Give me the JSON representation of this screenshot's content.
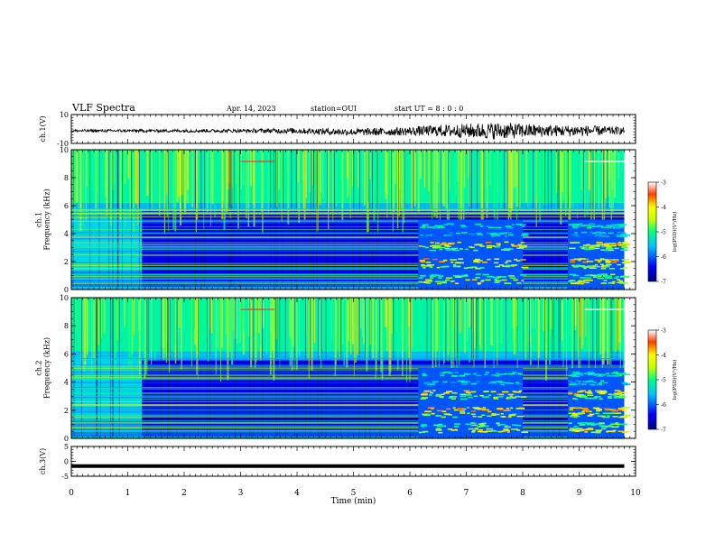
{
  "header": {
    "title": "VLF Spectra",
    "date": "Apr. 14, 2023",
    "station": "station=OUI",
    "start": "start  UT =   8 : 0  : 0"
  },
  "chart_data": [
    {
      "type": "line",
      "panel": "ch1-waveform",
      "ylabel": "ch.1(V)",
      "ylim": [
        -10,
        10
      ],
      "yticks": [
        "10",
        "-10"
      ],
      "x": [
        0,
        1,
        2,
        3,
        4,
        5,
        6,
        6.5,
        7,
        7.5,
        8,
        8.5,
        9,
        9.5,
        9.8
      ],
      "amplitude": [
        1,
        1,
        1.1,
        1.2,
        2,
        2.5,
        3,
        4,
        5,
        6,
        5,
        4,
        4,
        3,
        2.5
      ]
    },
    {
      "type": "heatmap",
      "panel": "ch1-spectrogram",
      "ylabel": "ch.1\nFrequency (kHz)",
      "ylim": [
        0,
        10
      ],
      "yticks": [
        "0",
        "2",
        "4",
        "6",
        "8",
        "10"
      ],
      "colorbar": {
        "label": "log(PSD)(V²/Hz)",
        "range": [
          -7,
          -3
        ],
        "ticks": [
          "-3",
          "-4",
          "-5",
          "-6",
          "-7"
        ]
      }
    },
    {
      "type": "heatmap",
      "panel": "ch2-spectrogram",
      "ylabel": "ch.2\nFrequency (kHz)",
      "ylim": [
        0,
        10
      ],
      "yticks": [
        "0",
        "2",
        "4",
        "6",
        "8",
        "10"
      ],
      "colorbar": {
        "label": "log(PSD)(V²/Hz)",
        "range": [
          -7,
          -3
        ],
        "ticks": [
          "-3",
          "-4",
          "-5",
          "-6",
          "-7"
        ]
      }
    },
    {
      "type": "line",
      "panel": "ch3-waveform",
      "ylabel": "ch.3(V)",
      "ylim": [
        -5,
        5
      ],
      "yticks": [
        "5",
        "0",
        "-5"
      ],
      "x": [
        0,
        9.8
      ],
      "values": [
        -1.6,
        -1.6
      ]
    }
  ],
  "xaxis": {
    "label": "Time  (min)",
    "range": [
      0,
      10
    ],
    "ticks": [
      "0",
      "1",
      "2",
      "3",
      "4",
      "5",
      "6",
      "7",
      "8",
      "9",
      "10"
    ]
  }
}
